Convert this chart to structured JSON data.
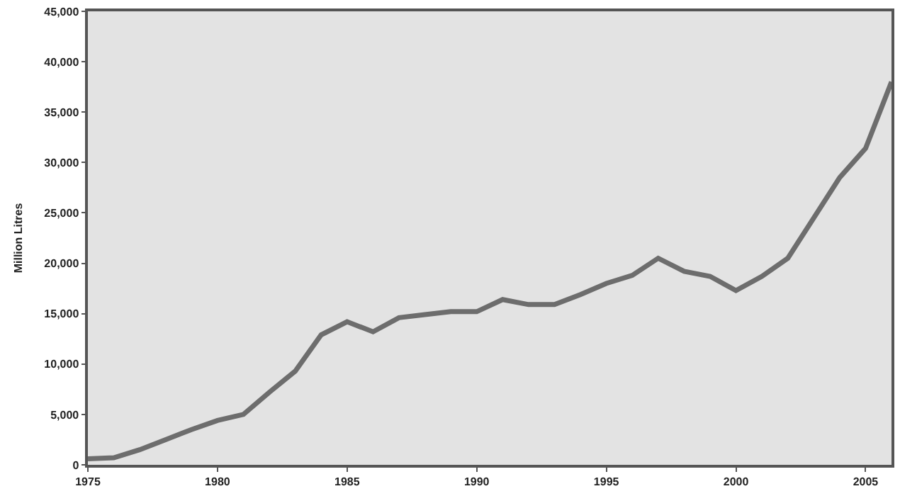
{
  "chart_data": {
    "type": "line",
    "ylabel": "Million Litres",
    "x": [
      1975,
      1976,
      1977,
      1978,
      1979,
      1980,
      1981,
      1982,
      1983,
      1984,
      1985,
      1986,
      1987,
      1988,
      1989,
      1990,
      1991,
      1992,
      1993,
      1994,
      1995,
      1996,
      1997,
      1998,
      1999,
      2000,
      2001,
      2002,
      2003,
      2004,
      2005,
      2006
    ],
    "series": [
      {
        "color": "#6d6d6d",
        "values": [
          600,
          700,
          1500,
          2500,
          3500,
          4400,
          5000,
          7200,
          9300,
          12900,
          14200,
          13200,
          14600,
          14900,
          15200,
          15200,
          16400,
          15900,
          15900,
          16900,
          18000,
          18800,
          20500,
          19200,
          18700,
          17300,
          18700,
          20500,
          24500,
          28500,
          31400,
          38000
        ]
      }
    ],
    "xlim": [
      1975,
      2006
    ],
    "xticks": [
      1975,
      1980,
      1985,
      1990,
      1995,
      2000,
      2005
    ],
    "ylim": [
      0,
      45000
    ],
    "yticks": [
      {
        "value": 0,
        "label": "0"
      },
      {
        "value": 5000,
        "label": "5,000"
      },
      {
        "value": 10000,
        "label": "10,000"
      },
      {
        "value": 15000,
        "label": "15,000"
      },
      {
        "value": 20000,
        "label": "20,000"
      },
      {
        "value": 25000,
        "label": "25,000"
      },
      {
        "value": 30000,
        "label": "30,000"
      },
      {
        "value": 35000,
        "label": "35,000"
      },
      {
        "value": 40000,
        "label": "40,000"
      },
      {
        "value": 45000,
        "label": "45,000"
      }
    ],
    "grid": false,
    "marker": "none",
    "line_style": "solid"
  }
}
